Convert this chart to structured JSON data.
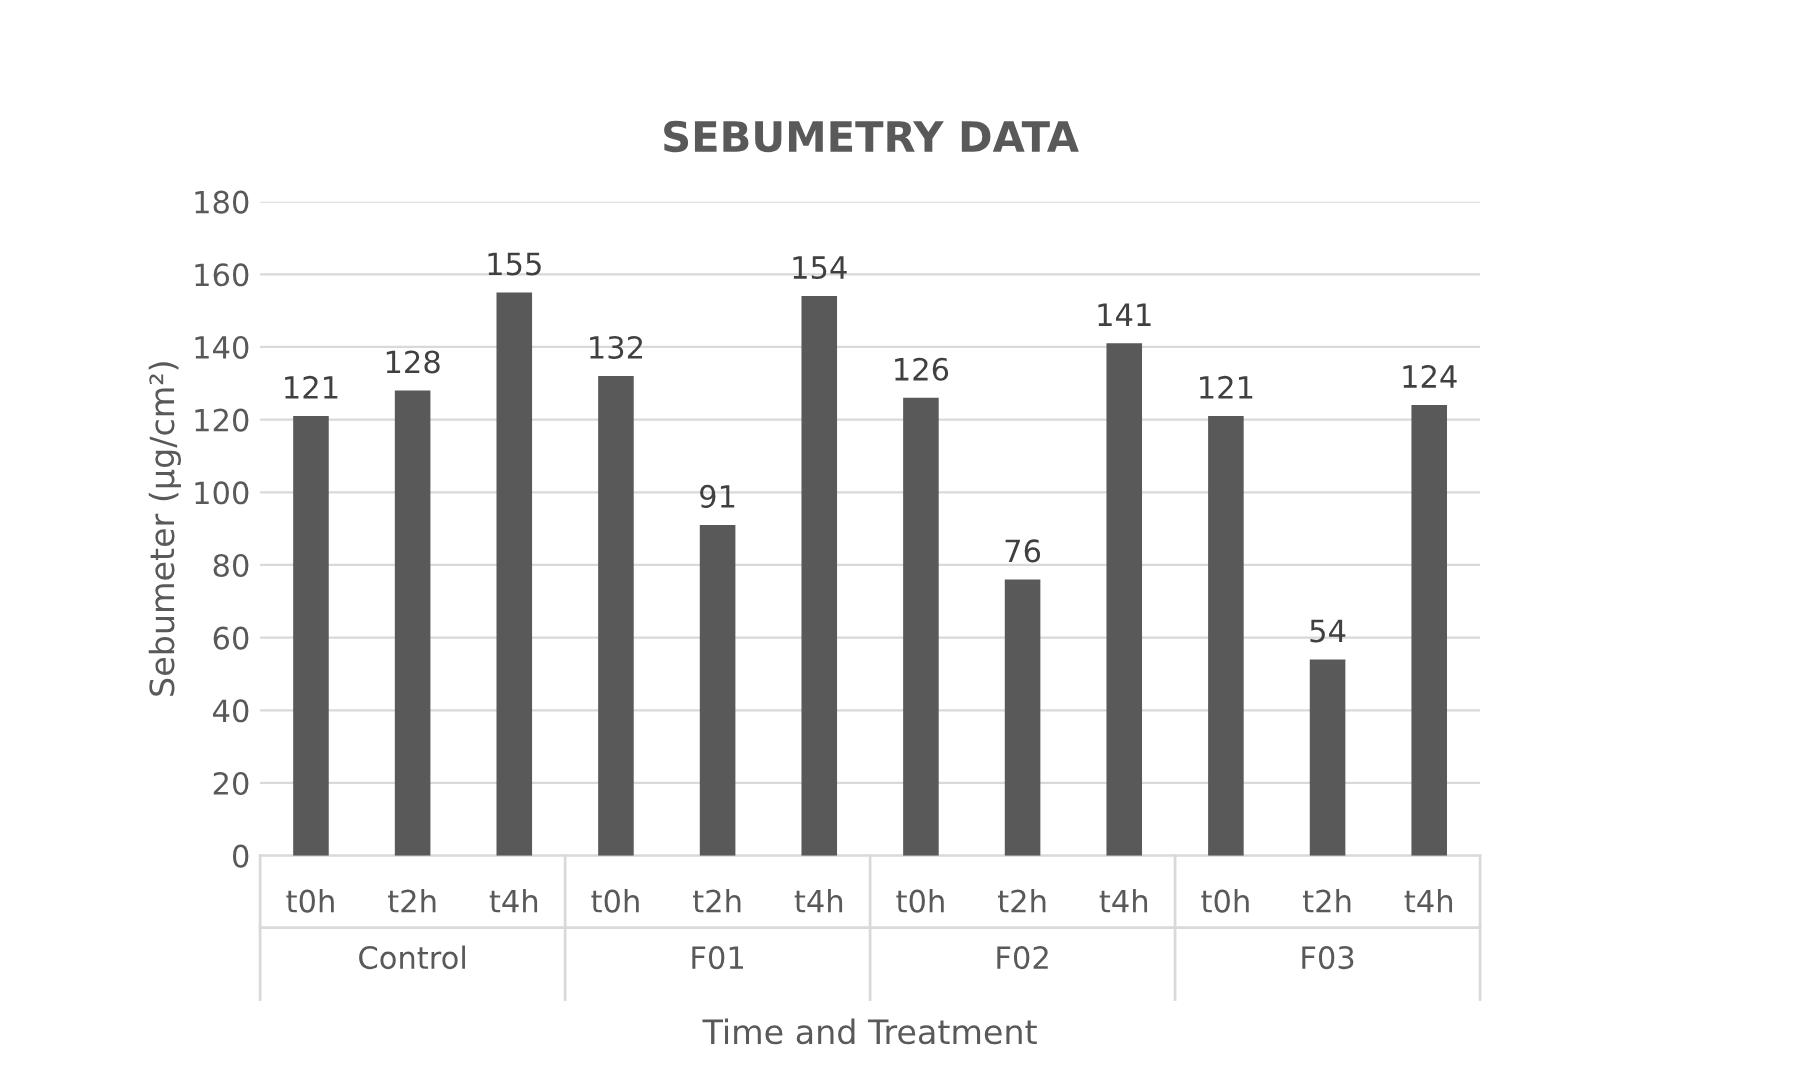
{
  "chart_data": {
    "type": "bar",
    "title": "SEBUMETRY DATA",
    "xlabel": "Time and Treatment",
    "ylabel": "Sebumeter (µg/cm²)",
    "categories": [
      "t0h",
      "t2h",
      "t4h",
      "t0h",
      "t2h",
      "t4h",
      "t0h",
      "t2h",
      "t4h",
      "t0h",
      "t2h",
      "t4h"
    ],
    "values": [
      121,
      128,
      155,
      132,
      91,
      154,
      126,
      76,
      141,
      121,
      54,
      124
    ],
    "color": "#595959",
    "annotations": [
      "Control",
      "F01",
      "F02",
      "F03"
    ],
    "ylim": [
      0,
      180
    ],
    "yticks": [
      0,
      20,
      40,
      60,
      80,
      100,
      120,
      140,
      160,
      180
    ],
    "grid": "y",
    "data_labels": true
  }
}
